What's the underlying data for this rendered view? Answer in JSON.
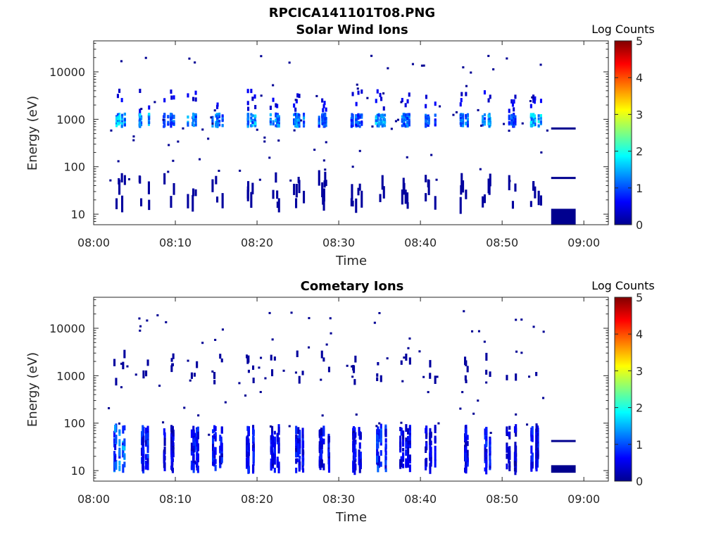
{
  "figure_title": "RPCICA141101T08.PNG",
  "colors": {
    "colormap": "jet",
    "axes_line": "#262626",
    "low_count": "#00008f"
  },
  "chart_data": [
    {
      "type": "heatmap",
      "title": "Solar Wind Ions",
      "xlabel": "Time",
      "ylabel": "Energy (eV)",
      "x_ticks": [
        "08:00",
        "08:10",
        "08:20",
        "08:30",
        "08:40",
        "08:50",
        "09:00"
      ],
      "xlim": [
        "08:00",
        "09:03"
      ],
      "y_scale": "log",
      "y_ticks": [
        10,
        100,
        1000,
        10000
      ],
      "ylim": [
        6,
        45000
      ],
      "grid": false,
      "colorbar": {
        "title": "Log Counts",
        "range": [
          0,
          5
        ],
        "ticks": [
          0,
          1,
          2,
          3,
          4,
          5
        ]
      },
      "scan_bursts": [
        {
          "time": "08:03",
          "peak_log_counts": 2.0
        },
        {
          "time": "08:06",
          "peak_log_counts": 1.8
        },
        {
          "time": "08:09",
          "peak_log_counts": 1.4
        },
        {
          "time": "08:12",
          "peak_log_counts": 1.6
        },
        {
          "time": "08:15",
          "peak_log_counts": 1.7
        },
        {
          "time": "08:19",
          "peak_log_counts": 1.8
        },
        {
          "time": "08:22",
          "peak_log_counts": 1.6
        },
        {
          "time": "08:25",
          "peak_log_counts": 1.7
        },
        {
          "time": "08:28",
          "peak_log_counts": 1.4
        },
        {
          "time": "08:32",
          "peak_log_counts": 1.3
        },
        {
          "time": "08:35",
          "peak_log_counts": 1.9
        },
        {
          "time": "08:38",
          "peak_log_counts": 1.6
        },
        {
          "time": "08:41",
          "peak_log_counts": 1.4
        },
        {
          "time": "08:45",
          "peak_log_counts": 1.6
        },
        {
          "time": "08:48",
          "peak_log_counts": 1.8
        },
        {
          "time": "08:51",
          "peak_log_counts": 1.3
        },
        {
          "time": "08:54",
          "peak_log_counts": 2.0
        }
      ],
      "main_band_eV": [
        700,
        1300
      ],
      "low_energy_band_eV": [
        15,
        60
      ],
      "trailing_marks": [
        {
          "start": "08:56",
          "end": "08:59",
          "energy_eV": 640
        },
        {
          "start": "08:56",
          "end": "08:59",
          "energy_eV": 58
        },
        {
          "start": "08:56",
          "end": "08:59",
          "energy_min_eV": 6,
          "energy_max_eV": 13
        }
      ]
    },
    {
      "type": "heatmap",
      "title": "Cometary Ions",
      "xlabel": "Time",
      "ylabel": "Energy (eV)",
      "x_ticks": [
        "08:00",
        "08:10",
        "08:20",
        "08:30",
        "08:40",
        "08:50",
        "09:00"
      ],
      "xlim": [
        "08:00",
        "09:03"
      ],
      "y_scale": "log",
      "y_ticks": [
        10,
        100,
        1000,
        10000
      ],
      "ylim": [
        6,
        45000
      ],
      "grid": false,
      "colorbar": {
        "title": "Log Counts",
        "range": [
          0,
          5
        ],
        "ticks": [
          0,
          1,
          2,
          3,
          4,
          5
        ]
      },
      "scan_bursts": [
        {
          "time": "08:03",
          "peak_log_counts": 1.6
        },
        {
          "time": "08:06",
          "peak_log_counts": 1.0
        },
        {
          "time": "08:09",
          "peak_log_counts": 0.7
        },
        {
          "time": "08:12",
          "peak_log_counts": 1.0
        },
        {
          "time": "08:15",
          "peak_log_counts": 0.9
        },
        {
          "time": "08:19",
          "peak_log_counts": 0.9
        },
        {
          "time": "08:22",
          "peak_log_counts": 0.8
        },
        {
          "time": "08:25",
          "peak_log_counts": 0.9
        },
        {
          "time": "08:28",
          "peak_log_counts": 0.8
        },
        {
          "time": "08:32",
          "peak_log_counts": 0.9
        },
        {
          "time": "08:35",
          "peak_log_counts": 1.2
        },
        {
          "time": "08:38",
          "peak_log_counts": 0.8
        },
        {
          "time": "08:41",
          "peak_log_counts": 0.7
        },
        {
          "time": "08:45",
          "peak_log_counts": 0.8
        },
        {
          "time": "08:48",
          "peak_log_counts": 1.0
        },
        {
          "time": "08:51",
          "peak_log_counts": 0.6
        },
        {
          "time": "08:54",
          "peak_log_counts": 0.9
        }
      ],
      "main_band_eV": [
        10,
        80
      ],
      "high_energy_band_eV": [
        700,
        3000
      ],
      "trailing_marks": [
        {
          "start": "08:56",
          "end": "08:59",
          "energy_eV": 42
        },
        {
          "start": "08:56",
          "end": "08:59",
          "energy_min_eV": 9,
          "energy_max_eV": 13
        }
      ]
    }
  ]
}
